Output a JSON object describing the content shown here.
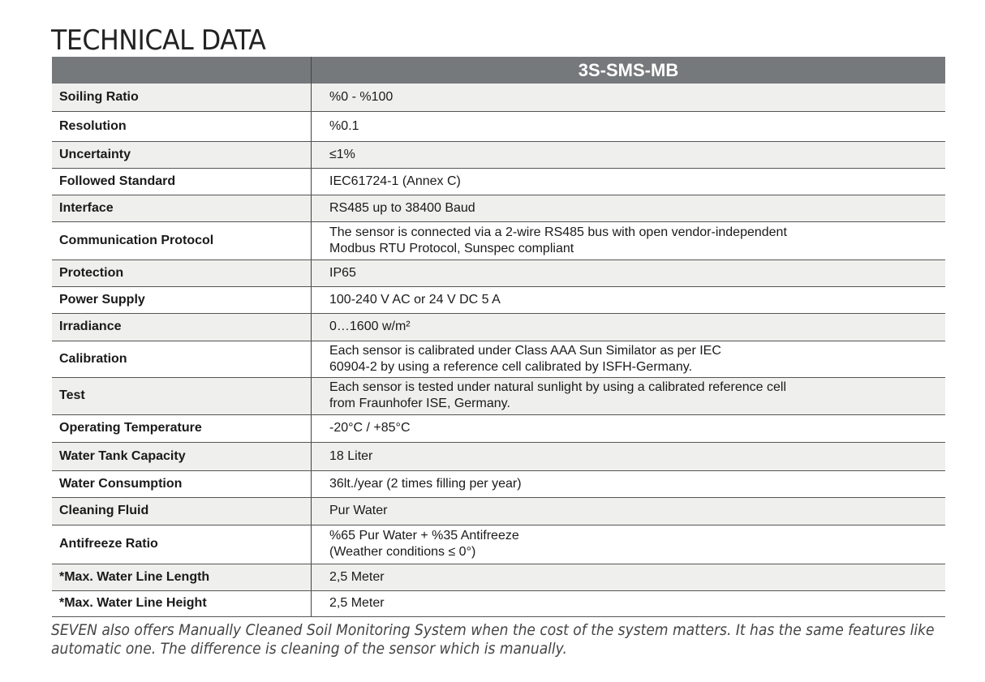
{
  "title": "TECHNICAL DATA",
  "table": {
    "header": [
      "",
      "3S-SMS-MB"
    ],
    "rows": [
      {
        "key": "Soiling Ratio",
        "value": [
          "%0 - %100"
        ]
      },
      {
        "key": "Resolution",
        "value": [
          "%0.1"
        ]
      },
      {
        "key": "Uncertainty",
        "value": [
          "≤1%"
        ]
      },
      {
        "key": "Followed Standard",
        "value": [
          "IEC61724-1 (Annex C)"
        ]
      },
      {
        "key": "Interface",
        "value": [
          "RS485 up to 38400 Baud"
        ]
      },
      {
        "key": "Communication Protocol",
        "value": [
          "The sensor is connected via a 2-wire RS485 bus with open vendor-independent",
          "Modbus RTU Protocol, Sunspec compliant"
        ]
      },
      {
        "key": "Protection",
        "value": [
          "IP65"
        ]
      },
      {
        "key": "Power Supply",
        "value": [
          "100-240 V AC or 24 V DC 5 A"
        ]
      },
      {
        "key": "Irradiance",
        "value": [
          "0…1600 w/m²"
        ]
      },
      {
        "key": "Calibration",
        "value": [
          "Each sensor is calibrated under Class AAA Sun Similator as per IEC",
          "60904-2 by using a reference cell calibrated by ISFH-Germany."
        ]
      },
      {
        "key": "Test",
        "value": [
          "Each sensor is tested under natural sunlight by using a calibrated reference cell",
          "from Fraunhofer ISE, Germany."
        ]
      },
      {
        "key": "Operating Temperature",
        "value": [
          "-20°C / +85°C"
        ]
      },
      {
        "key": "Water Tank Capacity",
        "value": [
          "18 Liter"
        ]
      },
      {
        "key": "Water Consumption",
        "value": [
          "36lt./year (2 times filling per year)"
        ]
      },
      {
        "key": "Cleaning Fluid",
        "value": [
          "Pur Water"
        ]
      },
      {
        "key": "Antifreeze Ratio",
        "value": [
          "%65 Pur Water + %35 Antifreeze",
          "(Weather conditions ≤ 0°)"
        ]
      },
      {
        "key": "*Max. Water Line Length",
        "value": [
          "2,5 Meter"
        ]
      },
      {
        "key": "*Max. Water Line Height",
        "value": [
          "2,5 Meter"
        ]
      }
    ]
  },
  "note": "SEVEN also offers Manually Cleaned Soil Monitoring System when the cost of the system matters. It has the same features like automatic one. The difference is cleaning of the sensor which is manually."
}
